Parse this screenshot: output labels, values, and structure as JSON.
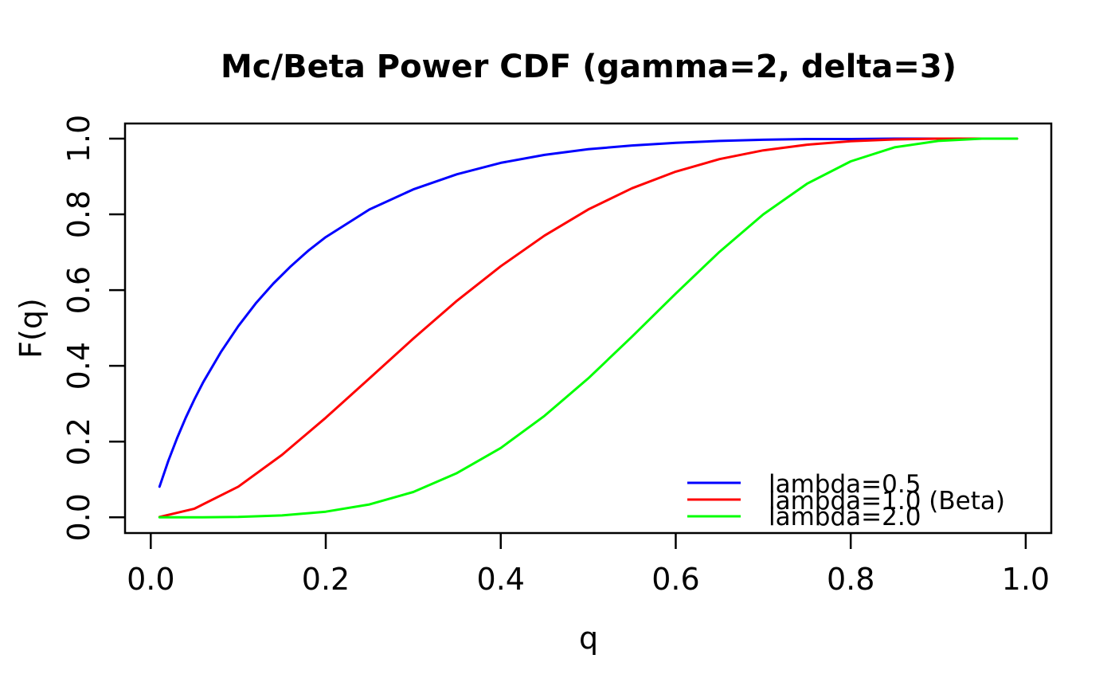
{
  "figure": {
    "background": "#FFFFFF",
    "axis_color": "#000000",
    "text_color": "#000000"
  },
  "chart_data": {
    "type": "line",
    "title": "Mc/Beta Power CDF (gamma=2, delta=3)",
    "xlabel": "q",
    "ylabel": "F(q)",
    "xlim": [
      0.0,
      1.0
    ],
    "ylim": [
      0.0,
      1.0
    ],
    "grid": false,
    "legend_position": "bottom-right",
    "x_tick_values": [
      0.0,
      0.2,
      0.4,
      0.6,
      0.8,
      1.0
    ],
    "x_tick_labels": [
      "0.0",
      "0.2",
      "0.4",
      "0.6",
      "0.8",
      "1.0"
    ],
    "y_tick_values": [
      0.0,
      0.2,
      0.4,
      0.6,
      0.8,
      1.0
    ],
    "y_tick_labels": [
      "0.0",
      "0.2",
      "0.4",
      "0.6",
      "0.8",
      "1.0"
    ],
    "series": [
      {
        "label": "lambda=0.5",
        "color": "#0000FF",
        "q": [
          0.01,
          0.02,
          0.03,
          0.04,
          0.05,
          0.06,
          0.08,
          0.1,
          0.12,
          0.14,
          0.16,
          0.18,
          0.2,
          0.25,
          0.3,
          0.35,
          0.4,
          0.45,
          0.5,
          0.55,
          0.6,
          0.65,
          0.7,
          0.75,
          0.8,
          0.85,
          0.9,
          0.95,
          0.99
        ],
        "F": [
          0.081,
          0.149,
          0.209,
          0.263,
          0.312,
          0.357,
          0.436,
          0.505,
          0.565,
          0.617,
          0.663,
          0.704,
          0.74,
          0.813,
          0.866,
          0.906,
          0.936,
          0.957,
          0.972,
          0.982,
          0.989,
          0.994,
          0.997,
          0.999,
          0.999,
          1.0,
          1.0,
          1.0,
          1.0
        ]
      },
      {
        "label": "lambda=1.0 (Beta)",
        "color": "#FF0000",
        "q": [
          0.01,
          0.05,
          0.1,
          0.15,
          0.2,
          0.25,
          0.3,
          0.35,
          0.4,
          0.45,
          0.5,
          0.55,
          0.6,
          0.65,
          0.7,
          0.75,
          0.8,
          0.85,
          0.9,
          0.95,
          0.99
        ],
        "F": [
          0.001,
          0.023,
          0.081,
          0.165,
          0.263,
          0.367,
          0.472,
          0.572,
          0.663,
          0.744,
          0.813,
          0.869,
          0.913,
          0.946,
          0.969,
          0.984,
          0.993,
          0.998,
          1.0,
          1.0,
          1.0
        ]
      },
      {
        "label": "lambda=2.0",
        "color": "#00FF00",
        "q": [
          0.01,
          0.05,
          0.1,
          0.15,
          0.2,
          0.25,
          0.3,
          0.35,
          0.4,
          0.45,
          0.5,
          0.55,
          0.6,
          0.65,
          0.7,
          0.75,
          0.8,
          0.85,
          0.9,
          0.95,
          0.99
        ],
        "F": [
          0.0,
          0.0,
          0.001,
          0.005,
          0.015,
          0.034,
          0.067,
          0.117,
          0.183,
          0.268,
          0.367,
          0.477,
          0.591,
          0.701,
          0.8,
          0.881,
          0.94,
          0.977,
          0.994,
          1.0,
          1.0
        ]
      }
    ]
  }
}
